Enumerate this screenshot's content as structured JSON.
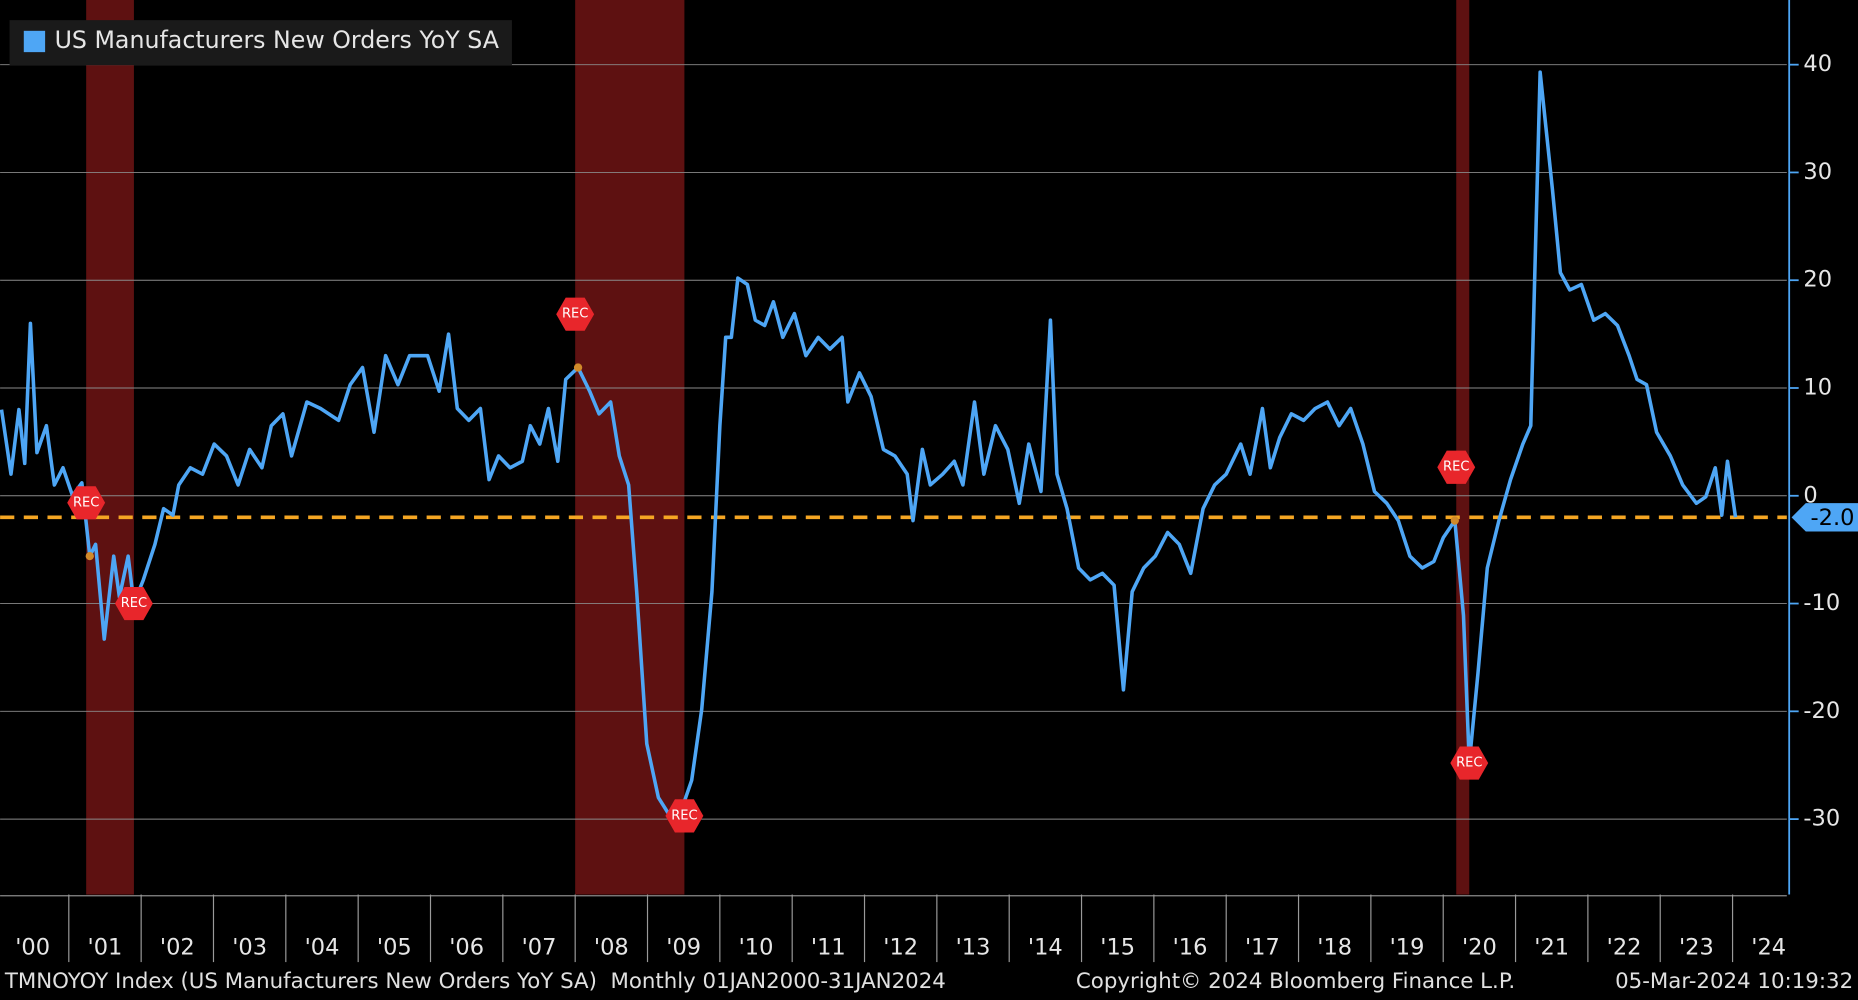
{
  "chart_data": {
    "type": "line",
    "series": [
      {
        "name": "US Manufacturers New Orders YoY SA",
        "color": "#4ea6f5",
        "values": [
          8,
          2,
          8,
          3,
          16,
          4,
          6.5,
          1,
          2.6,
          0,
          1.2,
          -5.6,
          -4.5,
          -13.3,
          -5.6,
          -9.4,
          -5.6,
          -10,
          -7.8,
          -4.5,
          -1.2,
          -1.8,
          1,
          2.6,
          2,
          4.8,
          3.7,
          1,
          4.3,
          2.6,
          6.5,
          7.6,
          3.7,
          8.7,
          8.1,
          7,
          10.3,
          11.9,
          5.9,
          13,
          10.3,
          13,
          13,
          9.7,
          15,
          8.1,
          7,
          8.1,
          1.5,
          3.7,
          2.6,
          3.2,
          6.5,
          4.8,
          8.1,
          3.2,
          10.8,
          11.9,
          9.7,
          7.6,
          8.7,
          3.7,
          1,
          -8.9,
          -23,
          -28,
          -29.7,
          -29.7,
          -26.4,
          -19.8,
          -8.9,
          6.5,
          14.7,
          14.7,
          20.2,
          19.6,
          16.3,
          15.8,
          18,
          14.7,
          16.9,
          13,
          14.7,
          13.6,
          14.7,
          8.7,
          11.4,
          9.2,
          4.3,
          3.7,
          2,
          -2.3,
          4.3,
          1,
          2,
          3.2,
          1,
          8.7,
          2,
          6.5,
          4.3,
          -0.7,
          4.8,
          0.4,
          16.3,
          2,
          -1.2,
          -6.7,
          -7.8,
          -7.2,
          -8.3,
          -18,
          -8.9,
          -6.7,
          -5.6,
          -3.4,
          -4.5,
          -7.2,
          -1.2,
          1,
          2,
          4.8,
          2,
          8.1,
          2.6,
          5.4,
          7.6,
          7,
          8.1,
          8.7,
          6.5,
          8.1,
          4.8,
          0.4,
          -0.7,
          -2.3,
          -5.6,
          -6.7,
          -6.1,
          -3.9,
          -2.3,
          -11.1,
          -24.8,
          -16.5,
          -6.7,
          -2.3,
          1.5,
          4.8,
          6.5,
          39.3,
          28.4,
          20.7,
          19.1,
          19.6,
          16.3,
          16.9,
          15.8,
          13,
          10.8,
          10.3,
          5.9,
          3.7,
          1,
          -0.7,
          -0.1,
          2.6,
          -1.8,
          3.2,
          -2
        ]
      }
    ],
    "x": [
      2000.07,
      2000.2,
      2000.31,
      2000.39,
      2000.47,
      2000.56,
      2000.69,
      2000.8,
      2000.92,
      2001.05,
      2001.18,
      2001.29,
      2001.37,
      2001.49,
      2001.62,
      2001.7,
      2001.82,
      2001.9,
      2002.03,
      2002.19,
      2002.31,
      2002.44,
      2002.52,
      2002.68,
      2002.85,
      2003.01,
      2003.18,
      2003.34,
      2003.5,
      2003.67,
      2003.8,
      2003.96,
      2004.08,
      2004.29,
      2004.48,
      2004.73,
      2004.89,
      2005.06,
      2005.22,
      2005.38,
      2005.55,
      2005.71,
      2005.96,
      2006.12,
      2006.25,
      2006.37,
      2006.53,
      2006.69,
      2006.81,
      2006.94,
      2007.1,
      2007.27,
      2007.38,
      2007.51,
      2007.63,
      2007.76,
      2007.87,
      2008.04,
      2008.2,
      2008.33,
      2008.49,
      2008.61,
      2008.74,
      2008.85,
      2008.99,
      2009.15,
      2009.31,
      2009.44,
      2009.61,
      2009.75,
      2009.89,
      2010,
      2010.08,
      2010.16,
      2010.25,
      2010.38,
      2010.49,
      2010.62,
      2010.74,
      2010.87,
      2011.03,
      2011.19,
      2011.36,
      2011.52,
      2011.69,
      2011.77,
      2011.93,
      2012.09,
      2012.26,
      2012.42,
      2012.59,
      2012.67,
      2012.8,
      2012.91,
      2013.08,
      2013.24,
      2013.36,
      2013.52,
      2013.65,
      2013.81,
      2013.98,
      2014.14,
      2014.27,
      2014.44,
      2014.57,
      2014.66,
      2014.8,
      2014.96,
      2015.12,
      2015.29,
      2015.45,
      2015.58,
      2015.7,
      2015.86,
      2016.02,
      2016.19,
      2016.35,
      2016.51,
      2016.68,
      2016.84,
      2017,
      2017.2,
      2017.33,
      2017.5,
      2017.61,
      2017.74,
      2017.9,
      2018.07,
      2018.23,
      2018.4,
      2018.56,
      2018.72,
      2018.89,
      2019.05,
      2019.22,
      2019.38,
      2019.54,
      2019.71,
      2019.87,
      2020,
      2020.16,
      2020.28,
      2020.36,
      2020.48,
      2020.61,
      2020.77,
      2020.93,
      2021.1,
      2021.21,
      2021.34,
      2021.51,
      2021.62,
      2021.75,
      2021.91,
      2022.08,
      2022.24,
      2022.41,
      2022.57,
      2022.68,
      2022.81,
      2022.95,
      2023.14,
      2023.31,
      2023.5,
      2023.63,
      2023.76,
      2023.85,
      2023.93,
      2024.04
    ],
    "xlim": [
      2000.05,
      2024.75
    ],
    "xticks": [
      {
        "value": 2000,
        "label": "'00"
      },
      {
        "value": 2001,
        "label": "'01"
      },
      {
        "value": 2002,
        "label": "'02"
      },
      {
        "value": 2003,
        "label": "'03"
      },
      {
        "value": 2004,
        "label": "'04"
      },
      {
        "value": 2005,
        "label": "'05"
      },
      {
        "value": 2006,
        "label": "'06"
      },
      {
        "value": 2007,
        "label": "'07"
      },
      {
        "value": 2008,
        "label": "'08"
      },
      {
        "value": 2009,
        "label": "'09"
      },
      {
        "value": 2010,
        "label": "'10"
      },
      {
        "value": 2011,
        "label": "'11"
      },
      {
        "value": 2012,
        "label": "'12"
      },
      {
        "value": 2013,
        "label": "'13"
      },
      {
        "value": 2014,
        "label": "'14"
      },
      {
        "value": 2015,
        "label": "'15"
      },
      {
        "value": 2016,
        "label": "'16"
      },
      {
        "value": 2017,
        "label": "'17"
      },
      {
        "value": 2018,
        "label": "'18"
      },
      {
        "value": 2019,
        "label": "'19"
      },
      {
        "value": 2020,
        "label": "'20"
      },
      {
        "value": 2021,
        "label": "'21"
      },
      {
        "value": 2022,
        "label": "'22"
      },
      {
        "value": 2023,
        "label": "'23"
      },
      {
        "value": 2024,
        "label": "'24"
      }
    ],
    "ylim": [
      -37,
      46
    ],
    "yticks": [
      40,
      30,
      20,
      10,
      0,
      -10,
      -20,
      -30
    ],
    "grid": true,
    "legend": "top-left",
    "recessions": [
      {
        "start": 2001.24,
        "end": 2001.9
      },
      {
        "start": 2008,
        "end": 2009.51
      },
      {
        "start": 2020.18,
        "end": 2020.36
      }
    ],
    "recession_color": "#6e1414",
    "recession_label": "REC",
    "reference_line": {
      "value": -2,
      "label": "-2.0",
      "color": "#f5a623"
    },
    "footer": {
      "description": "TMNOYOY Index (US Manufacturers New Orders YoY SA)  Monthly 01JAN2000-31JAN2024",
      "copyright": "Copyright© 2024 Bloomberg Finance L.P.",
      "timestamp": "05-Mar-2024 10:19:32"
    }
  }
}
